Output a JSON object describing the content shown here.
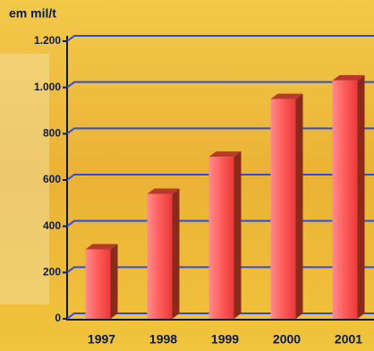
{
  "chart_data": {
    "type": "bar",
    "ylabel": "em mil/t",
    "categories": [
      "1997",
      "1998",
      "1999",
      "2000",
      "2001"
    ],
    "values": [
      300,
      540,
      700,
      950,
      1030
    ],
    "color": "#ff4a4a",
    "ylim": [
      0,
      1200
    ],
    "yticks": [
      0,
      200,
      400,
      600,
      800,
      {
        "value": 1000,
        "label": "1.000"
      },
      {
        "value": 1200,
        "label": "1.200"
      }
    ],
    "grid": true
  }
}
